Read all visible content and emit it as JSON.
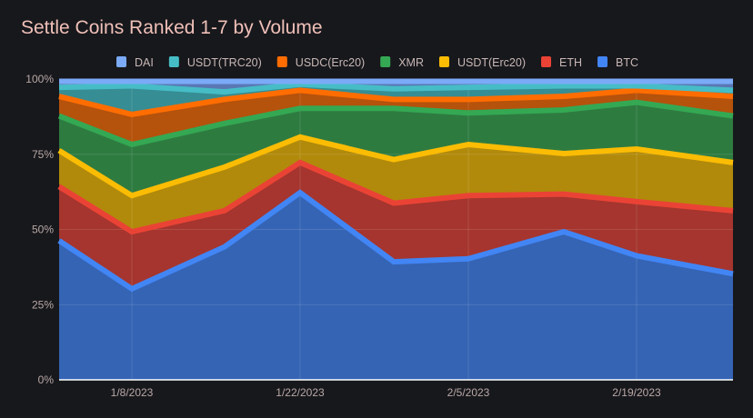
{
  "chart_data": {
    "type": "area",
    "stacked": true,
    "normalized": true,
    "title": "Settle Coins Ranked 1-7 by Volume",
    "xlabel": "",
    "ylabel": "",
    "x": [
      "1/1/2023",
      "1/8/2023",
      "1/15/2023",
      "1/22/2023",
      "1/29/2023",
      "2/5/2023",
      "2/12/2023",
      "2/19/2023",
      "2/26/2023"
    ],
    "x_tick_labels": [
      "1/8/2023",
      "1/22/2023",
      "2/5/2023",
      "2/19/2023"
    ],
    "x_tick_indices": [
      1,
      3,
      5,
      7
    ],
    "y_ticks": [
      "0%",
      "25%",
      "50%",
      "75%",
      "100%"
    ],
    "ylim": [
      0,
      100
    ],
    "grid": true,
    "legend_position": "top",
    "legend_order": [
      "DAI",
      "USDT(TRC20)",
      "USDC(Erc20)",
      "XMR",
      "USDT(Erc20)",
      "ETH",
      "BTC"
    ],
    "series": [
      {
        "name": "BTC",
        "line": "#4285f4",
        "fill": "#3564b4",
        "values": [
          47,
          31,
          45,
          63,
          40,
          41,
          50,
          42,
          36
        ]
      },
      {
        "name": "ETH",
        "line": "#ea4335",
        "fill": "#a5352e",
        "values": [
          18,
          19,
          12,
          10,
          19.5,
          21,
          12.5,
          18,
          21
        ]
      },
      {
        "name": "USDT(Erc20)",
        "line": "#fbbc04",
        "fill": "#b18a0b",
        "values": [
          12,
          12,
          14.5,
          8.5,
          14.5,
          17,
          13.5,
          17.5,
          16
        ]
      },
      {
        "name": "XMR",
        "line": "#34a853",
        "fill": "#2e7b40",
        "values": [
          11.5,
          17,
          14.5,
          9.5,
          17,
          10.5,
          14.5,
          15.5,
          15.5
        ]
      },
      {
        "name": "USDC(Erc20)",
        "line": "#ff6d01",
        "fill": "#b5520c",
        "values": [
          6.5,
          10,
          8,
          6,
          3,
          4.5,
          4.5,
          4,
          6.5
        ]
      },
      {
        "name": "USDT(TRC20)",
        "line": "#46bdc6",
        "fill": "#368d94",
        "values": [
          3,
          9.5,
          2.5,
          2,
          3.5,
          4,
          3.5,
          1.5,
          2
        ]
      },
      {
        "name": "DAI",
        "line": "#7baaf7",
        "fill": "#5a78b4",
        "values": [
          2,
          1.5,
          3.5,
          1,
          2.5,
          2,
          1.5,
          1.5,
          3
        ]
      }
    ]
  }
}
